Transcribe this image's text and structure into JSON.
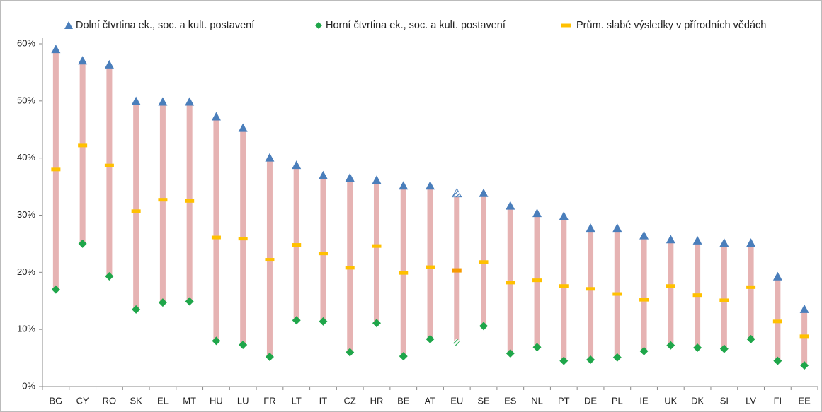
{
  "chart_data": {
    "type": "range",
    "categories": [
      "BG",
      "CY",
      "RO",
      "SK",
      "EL",
      "MT",
      "HU",
      "LU",
      "FR",
      "LT",
      "IT",
      "CZ",
      "HR",
      "BE",
      "AT",
      "EU",
      "SE",
      "ES",
      "NL",
      "PT",
      "DE",
      "PL",
      "IE",
      "UK",
      "DK",
      "SI",
      "LV",
      "FI",
      "EE"
    ],
    "series": [
      {
        "name": "Dolní čtvrtina ek., soc. a kult. postavení",
        "color": "#4a7ebb",
        "marker": "triangle",
        "values": [
          59,
          57,
          56.3,
          49.9,
          49.8,
          49.8,
          47.2,
          45.2,
          40,
          38.7,
          36.9,
          36.5,
          36.1,
          35.1,
          35.1,
          33.8,
          33.8,
          31.6,
          30.3,
          29.8,
          27.7,
          27.7,
          26.4,
          25.7,
          25.5,
          25.1,
          25.1,
          19.2,
          13.5
        ]
      },
      {
        "name": "Horní čtvrtina ek., soc. a kult. postavení",
        "color": "#1fa64a",
        "marker": "diamond",
        "values": [
          17,
          25,
          19.3,
          13.5,
          14.7,
          14.9,
          8,
          7.3,
          5.2,
          11.6,
          11.4,
          6,
          11.1,
          5.3,
          8.3,
          7.7,
          10.6,
          5.8,
          6.9,
          4.5,
          4.7,
          5.1,
          6.2,
          7.2,
          6.8,
          6.6,
          8.3,
          4.5,
          3.7
        ]
      },
      {
        "name": "Prům. slabé výsledky v přírodních vědách",
        "color": "#ffc000",
        "marker": "dash",
        "values": [
          38,
          42.2,
          38.7,
          30.7,
          32.7,
          32.5,
          26.1,
          25.9,
          22.2,
          24.8,
          23.3,
          20.8,
          24.6,
          19.9,
          20.9,
          20.4,
          21.8,
          18.2,
          18.6,
          17.6,
          17.1,
          16.2,
          15.2,
          17.6,
          16,
          15.1,
          17.4,
          11.4,
          8.8
        ]
      }
    ],
    "range_color": "#e6b3b3",
    "highlight": "EU",
    "ylim": [
      0,
      60
    ],
    "yticks": [
      {
        "value": 0,
        "label": "0%"
      },
      {
        "value": 10,
        "label": "10%"
      },
      {
        "value": 20,
        "label": "20%"
      },
      {
        "value": 30,
        "label": "30%"
      },
      {
        "value": 40,
        "label": "40%"
      },
      {
        "value": 50,
        "label": "50%"
      },
      {
        "value": 60,
        "label": "60%"
      }
    ]
  }
}
